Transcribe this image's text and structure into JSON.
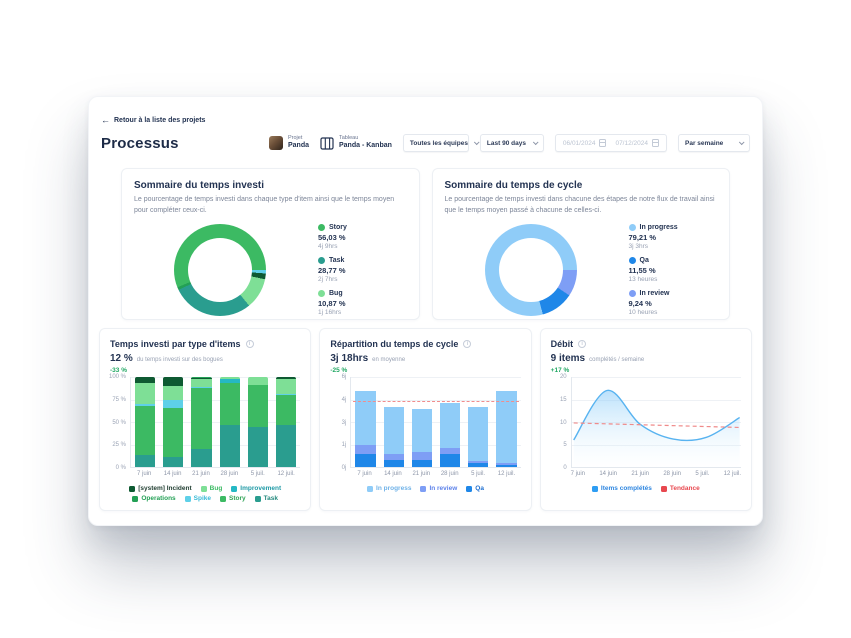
{
  "header": {
    "back_label": "Retour à la liste des projets",
    "title": "Processus",
    "project": {
      "label": "Projet",
      "name": "Panda"
    },
    "board": {
      "label": "Tableau",
      "name": "Panda - Kanban"
    },
    "filters": {
      "teams": "Toutes les équipes",
      "date_range": "Last 90 days",
      "date_from": "06/01/2024",
      "date_to": "07/12/2024",
      "granularity": "Par semaine"
    }
  },
  "invested_summary": {
    "title": "Sommaire du temps investi",
    "description": "Le pourcentage de temps investi dans chaque type d'item ainsi que le temps moyen pour compléter ceux-ci.",
    "legend": [
      {
        "label": "Story",
        "pct": "56,03 %",
        "time": "4j 9hrs",
        "color": "#3cba63"
      },
      {
        "label": "Task",
        "pct": "28,77 %",
        "time": "2j 7hrs",
        "color": "#2a9d8f"
      },
      {
        "label": "Bug",
        "pct": "10,87 %",
        "time": "1j 16hrs",
        "color": "#7edf96"
      }
    ]
  },
  "cycle_summary": {
    "title": "Sommaire du temps de cycle",
    "description": "Le pourcentage de temps investi dans chacune des étapes de notre flux de travail ainsi que le temps moyen passé à chacune de celles-ci.",
    "legend": [
      {
        "label": "In progress",
        "pct": "79,21 %",
        "time": "3j 3hrs",
        "color": "#8fccf8"
      },
      {
        "label": "Qa",
        "pct": "11,55 %",
        "time": "13 heures",
        "color": "#1f87e8"
      },
      {
        "label": "In review",
        "pct": "9,24 %",
        "time": "10 heures",
        "color": "#7e9ef5"
      }
    ]
  },
  "invested_chart": {
    "title": "Temps investi par type d'items",
    "stat": "12 %",
    "stat_unit": "du temps investi sur des bogues",
    "delta": "-33 %"
  },
  "cycle_chart": {
    "title": "Répartition du temps de cycle",
    "stat": "3j 18hrs",
    "stat_unit": "en moyenne",
    "delta": "-25 %"
  },
  "throughput_chart": {
    "title": "Débit",
    "stat": "9 items",
    "stat_unit": "complétés / semaine",
    "delta": "+17 %"
  },
  "chart_data": [
    {
      "type": "donut",
      "title": "Sommaire du temps investi",
      "rotation_deg": 248,
      "segments": [
        {
          "label": "Story",
          "value": 56.03,
          "color": "#3cba63"
        },
        {
          "label": "Spike",
          "value": 1.3,
          "color": "#5ed0e8"
        },
        {
          "label": "[system] Incident",
          "value": 2.0,
          "color": "#0e5a32"
        },
        {
          "label": "Bug",
          "value": 10.87,
          "color": "#7edf96"
        },
        {
          "label": "Task",
          "value": 28.77,
          "color": "#2a9d8f"
        },
        {
          "label": "Operations",
          "value": 1.03,
          "color": "#23a055"
        }
      ]
    },
    {
      "type": "donut",
      "title": "Sommaire du temps de cycle",
      "rotation_deg": 165,
      "segments": [
        {
          "label": "In progress",
          "value": 79.21,
          "color": "#8fccf8"
        },
        {
          "label": "In review",
          "value": 9.24,
          "color": "#7e9ef5"
        },
        {
          "label": "Qa",
          "value": 11.55,
          "color": "#1f87e8"
        }
      ]
    },
    {
      "type": "stacked_bar",
      "title": "Temps investi par type d'items",
      "percent": true,
      "ymax": 100,
      "categories": [
        "7 juin",
        "14 juin",
        "21 juin",
        "28 juin",
        "5 juil.",
        "12 juil."
      ],
      "yticks": [
        "100 %",
        "75 %",
        "50 %",
        "25 %",
        "0 %"
      ],
      "series": [
        {
          "name": "Task",
          "color": "#2a9d8f",
          "values": [
            13,
            11,
            20,
            47,
            44,
            47
          ]
        },
        {
          "name": "Story",
          "color": "#3cba63",
          "values": [
            55,
            55,
            68,
            46,
            47,
            33
          ]
        },
        {
          "name": "Spike",
          "color": "#5ed0e8",
          "values": [
            2,
            8,
            1,
            0,
            0,
            1
          ]
        },
        {
          "name": "Improvement",
          "color": "#25b8c4",
          "values": [
            0,
            0,
            0,
            5,
            0,
            0
          ]
        },
        {
          "name": "Bug",
          "color": "#7edf96",
          "values": [
            23,
            16,
            9,
            2,
            9,
            17
          ]
        },
        {
          "name": "[system] Incident",
          "color": "#0e5a32",
          "values": [
            7,
            10,
            1,
            0,
            0,
            2
          ]
        },
        {
          "name": "Operations",
          "color": "#23a055",
          "values": [
            0,
            0,
            1,
            0,
            0,
            0
          ]
        }
      ],
      "legend": [
        {
          "label": "[system] Incident",
          "color": "#0e5a32",
          "text": "#1d3b2e"
        },
        {
          "label": "Bug",
          "color": "#7edf96",
          "text": "#3cba63"
        },
        {
          "label": "Improvement",
          "color": "#25b8c4",
          "text": "#1f9aa6"
        },
        {
          "label": "Operations",
          "color": "#23a055",
          "text": "#23a055"
        },
        {
          "label": "Spike",
          "color": "#5ed0e8",
          "text": "#36b9d6"
        },
        {
          "label": "Story",
          "color": "#3cba63",
          "text": "#2fa356"
        },
        {
          "label": "Task",
          "color": "#2a9d8f",
          "text": "#23897d"
        }
      ]
    },
    {
      "type": "stacked_bar",
      "title": "Répartition du temps de cycle",
      "ymax": 6,
      "categories": [
        "7 juin",
        "14 juin",
        "21 juin",
        "28 juin",
        "5 juil.",
        "12 juil."
      ],
      "yticks": [
        "6j",
        "4j",
        "3j",
        "1j",
        "0j"
      ],
      "trend": {
        "value": 4.4,
        "color": "#f08d8d"
      },
      "series": [
        {
          "name": "Qa",
          "color": "#1f87e8",
          "values": [
            0.9,
            0.5,
            0.45,
            0.9,
            0.25,
            0.12
          ]
        },
        {
          "name": "In review",
          "color": "#7e9ef5",
          "values": [
            0.6,
            0.35,
            0.55,
            0.35,
            0.12,
            0.15
          ]
        },
        {
          "name": "In progress",
          "color": "#8fccf8",
          "values": [
            3.6,
            3.15,
            2.9,
            3.0,
            3.6,
            4.8
          ]
        }
      ],
      "legend": [
        {
          "label": "In progress",
          "color": "#8fccf8",
          "text": "#6fb2e8"
        },
        {
          "label": "In review",
          "color": "#7e9ef5",
          "text": "#5d82ea"
        },
        {
          "label": "Qa",
          "color": "#1f87e8",
          "text": "#1f6fd0"
        }
      ]
    },
    {
      "type": "area",
      "title": "Débit",
      "ymax": 20,
      "categories": [
        "7 juin",
        "14 juin",
        "21 juin",
        "28 juin",
        "5 juil.",
        "12 juil."
      ],
      "yticks": [
        "20",
        "15",
        "10",
        "5",
        "0"
      ],
      "values": [
        6,
        17,
        9.5,
        6.2,
        6.6,
        11
      ],
      "line_color": "#58b3f0",
      "fill_from": "rgba(130,200,248,0.55)",
      "fill_to": "rgba(235,248,255,0.05)",
      "trend": {
        "start": 9.8,
        "end": 8.8,
        "color": "#ef8a8a"
      },
      "legend": [
        {
          "label": "Items complétés",
          "color": "#2e9df3",
          "text": "#2e86e0"
        },
        {
          "label": "Tendance",
          "color": "#e8484f",
          "text": "#e8484f"
        }
      ]
    }
  ]
}
